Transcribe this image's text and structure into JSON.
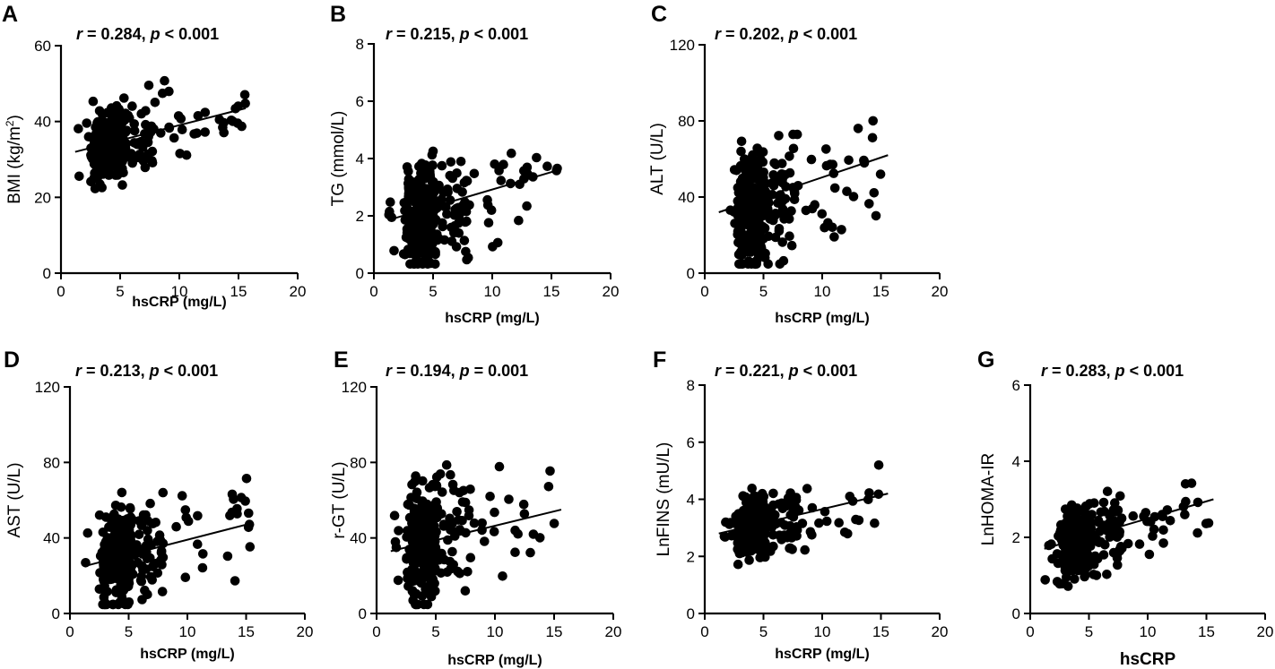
{
  "chart_data": [
    {
      "type": "scatter",
      "letter": "A",
      "stat": {
        "r_label": "r",
        "r_text": " = 0.284, ",
        "p_label": "p",
        "p_text": " < 0.001"
      },
      "ylabel": "BMI (kg/m",
      "ylabel_sup": "2",
      "ylabel_end": ")",
      "xlabel": "hsCRP (mg/L)",
      "xlim": [
        0,
        20
      ],
      "ylim": [
        0,
        60
      ],
      "xticks": [
        0,
        5,
        10,
        15,
        20
      ],
      "yticks": [
        0,
        20,
        40,
        60
      ],
      "fit": [
        [
          1.2,
          32
        ],
        [
          15.6,
          43.5
        ]
      ],
      "x_center": 4.5,
      "y_center": 34,
      "spread": 7,
      "seed": 11
    },
    {
      "type": "scatter",
      "letter": "B",
      "stat": {
        "r_label": "r",
        "r_text": " = 0.215, ",
        "p_label": "p",
        "p_text": " < 0.001"
      },
      "ylabel": "TG (mmol/L)",
      "xlabel": "hsCRP (mg/L)",
      "xlim": [
        0,
        20
      ],
      "ylim": [
        0,
        8
      ],
      "xticks": [
        0,
        5,
        10,
        15,
        20
      ],
      "yticks": [
        0,
        2,
        4,
        6,
        8
      ],
      "fit": [
        [
          1.2,
          1.85
        ],
        [
          15.6,
          3.6
        ]
      ],
      "x_center": 4.5,
      "y_center": 2.0,
      "spread": 1.2,
      "seed": 23
    },
    {
      "type": "scatter",
      "letter": "C",
      "stat": {
        "r_label": "r",
        "r_text": " = 0.202, ",
        "p_label": "p",
        "p_text": " < 0.001"
      },
      "ylabel": "ALT (U/L)",
      "xlabel": "hsCRP (mg/L)",
      "xlim": [
        0,
        20
      ],
      "ylim": [
        0,
        120
      ],
      "xticks": [
        0,
        5,
        10,
        15,
        20
      ],
      "yticks": [
        0,
        40,
        80,
        120
      ],
      "fit": [
        [
          1.2,
          32
        ],
        [
          15.6,
          62
        ]
      ],
      "x_center": 4.5,
      "y_center": 35,
      "spread": 22,
      "seed": 37
    },
    {
      "type": "scatter",
      "letter": "D",
      "stat": {
        "r_label": "r",
        "r_text": " = 0.213, ",
        "p_label": "p",
        "p_text": " < 0.001"
      },
      "ylabel": "AST (U/L)",
      "xlabel": "hsCRP (mg/L)",
      "xlim": [
        0,
        20
      ],
      "ylim": [
        0,
        120
      ],
      "xticks": [
        0,
        5,
        10,
        15,
        20
      ],
      "yticks": [
        0,
        40,
        80,
        120
      ],
      "fit": [
        [
          1.2,
          25
        ],
        [
          15.6,
          48
        ]
      ],
      "x_center": 4.5,
      "y_center": 30,
      "spread": 18,
      "seed": 41
    },
    {
      "type": "scatter",
      "letter": "E",
      "stat": {
        "r_label": "r",
        "r_text": " = 0.194, ",
        "p_label": "p",
        "p_text": " = 0.001"
      },
      "ylabel": "r-GT (U/L)",
      "xlabel": "hsCRP (mg/L)",
      "xlim": [
        0,
        20
      ],
      "ylim": [
        0,
        120
      ],
      "xticks": [
        0,
        5,
        10,
        15,
        20
      ],
      "yticks": [
        0,
        40,
        80,
        120
      ],
      "fit": [
        [
          1.2,
          33
        ],
        [
          15.6,
          55
        ]
      ],
      "x_center": 4.5,
      "y_center": 38,
      "spread": 22,
      "seed": 53
    },
    {
      "type": "scatter",
      "letter": "F",
      "stat": {
        "r_label": "r",
        "r_text": " = 0.221, ",
        "p_label": "p",
        "p_text": " < 0.001"
      },
      "ylabel": "LnFINS (mU/L)",
      "xlabel": "hsCRP (mg/L)",
      "xlim": [
        0,
        20
      ],
      "ylim": [
        0,
        8
      ],
      "xticks": [
        0,
        5,
        10,
        15,
        20
      ],
      "yticks": [
        0,
        2,
        4,
        6,
        8
      ],
      "fit": [
        [
          1.2,
          2.8
        ],
        [
          15.6,
          4.2
        ]
      ],
      "x_center": 4.5,
      "y_center": 3.1,
      "spread": 0.7,
      "seed": 67
    },
    {
      "type": "scatter",
      "letter": "G",
      "stat": {
        "r_label": "r",
        "r_text": " = 0.283, ",
        "p_label": "p",
        "p_text": " < 0.001"
      },
      "ylabel": "LnHOMA-IR",
      "xlabel": "hsCRP",
      "xlim": [
        0,
        20
      ],
      "ylim": [
        0,
        6
      ],
      "xticks": [
        0,
        5,
        10,
        15,
        20
      ],
      "yticks": [
        0,
        2,
        4,
        6
      ],
      "fit": [
        [
          1.2,
          1.7
        ],
        [
          15.6,
          3.0
        ]
      ],
      "x_center": 4.5,
      "y_center": 1.9,
      "spread": 0.65,
      "seed": 79
    }
  ]
}
